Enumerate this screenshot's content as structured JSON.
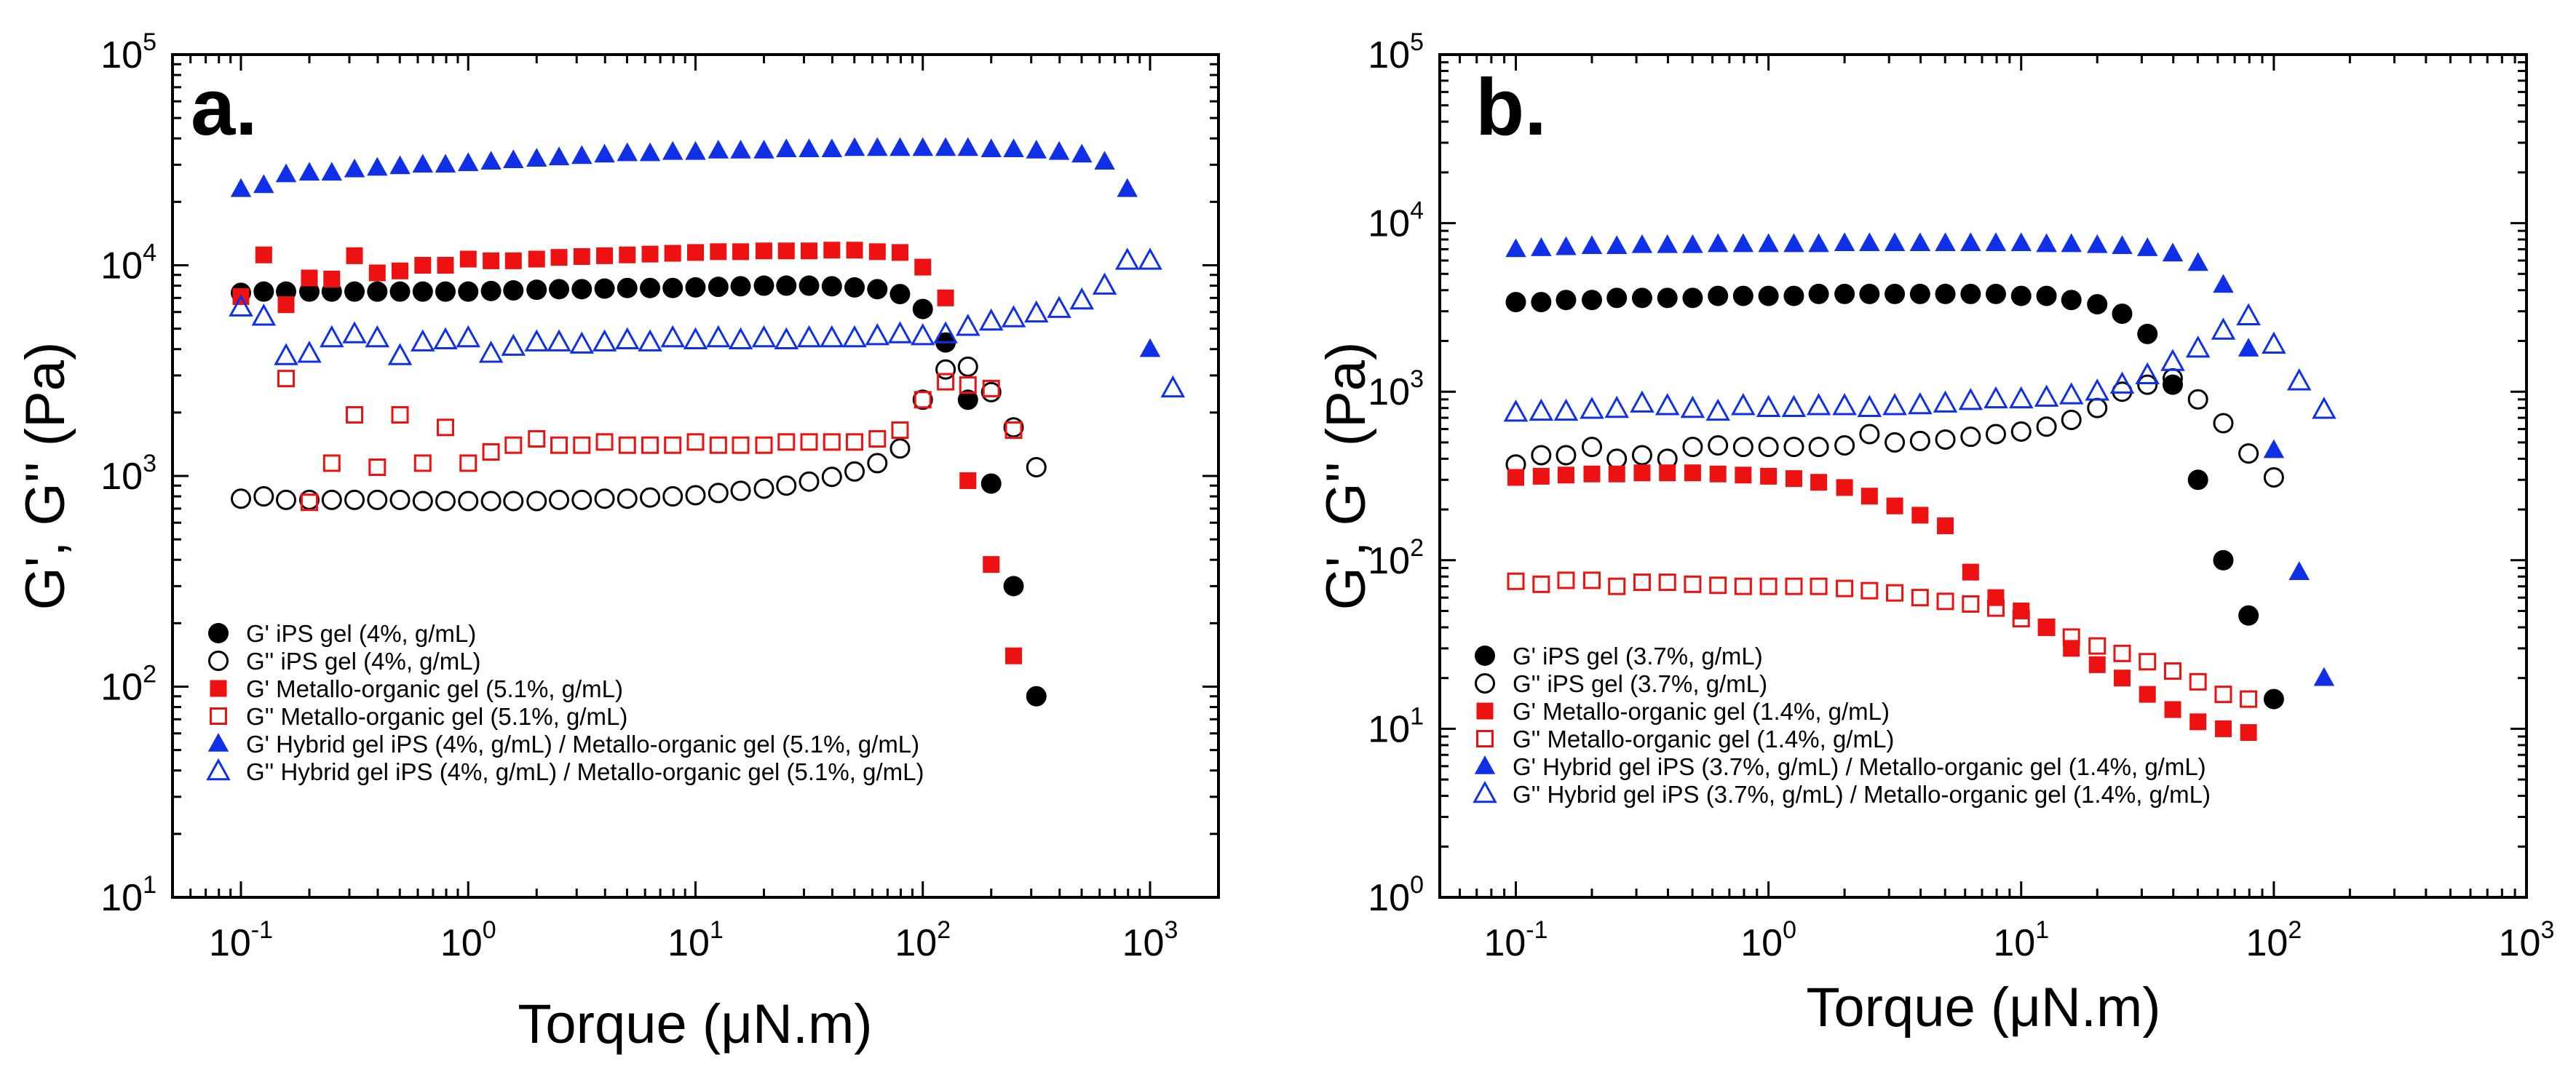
{
  "colors": {
    "black": "#000000",
    "red": "#ee1111",
    "blue": "#1030e8"
  },
  "chart_data": [
    {
      "type": "scatter",
      "panel_label": "a.",
      "xlabel": "Torque (μN.m)",
      "ylabel": "G', G'' (Pa)",
      "xscale": "log",
      "yscale": "log",
      "xlim": [
        0.05,
        2000
      ],
      "ylim": [
        10,
        100000
      ],
      "xticks": [
        {
          "b": "10",
          "e": "-1"
        },
        {
          "b": "10",
          "e": "0"
        },
        {
          "b": "10",
          "e": "1"
        },
        {
          "b": "10",
          "e": "2"
        },
        {
          "b": "10",
          "e": "3"
        }
      ],
      "yticks": [
        {
          "b": "10",
          "e": "1"
        },
        {
          "b": "10",
          "e": "2"
        },
        {
          "b": "10",
          "e": "3"
        },
        {
          "b": "10",
          "e": "4"
        },
        {
          "b": "10",
          "e": "5"
        }
      ],
      "legend_position": "bottom-left",
      "series": [
        {
          "name": "G' iPS gel (4%, g/mL)",
          "marker": "circle",
          "filled": true,
          "color": "black",
          "x": [
            0.1,
            0.126,
            0.158,
            0.2,
            0.251,
            0.316,
            0.398,
            0.501,
            0.631,
            0.794,
            1.0,
            1.26,
            1.58,
            2.0,
            2.51,
            3.16,
            3.98,
            5.01,
            6.31,
            7.94,
            10.0,
            12.6,
            15.8,
            20.0,
            25.1,
            31.6,
            39.8,
            50.1,
            63.1,
            79.4,
            100,
            126,
            158,
            200,
            251,
            316
          ],
          "y": [
            7400,
            7500,
            7500,
            7500,
            7500,
            7500,
            7500,
            7500,
            7500,
            7500,
            7500,
            7550,
            7600,
            7650,
            7700,
            7700,
            7750,
            7800,
            7800,
            7800,
            7850,
            7900,
            7950,
            8000,
            8000,
            8000,
            7950,
            7850,
            7700,
            7300,
            6200,
            4300,
            2300,
            920,
            300,
            90
          ]
        },
        {
          "name": "G'' iPS gel (4%, g/mL)",
          "marker": "circle",
          "filled": false,
          "color": "black",
          "x": [
            0.1,
            0.126,
            0.158,
            0.2,
            0.251,
            0.316,
            0.398,
            0.501,
            0.631,
            0.794,
            1.0,
            1.26,
            1.58,
            2.0,
            2.51,
            3.16,
            3.98,
            5.01,
            6.31,
            7.94,
            10.0,
            12.6,
            15.8,
            20.0,
            25.1,
            31.6,
            39.8,
            50.1,
            63.1,
            79.4,
            100,
            126,
            158,
            200,
            251,
            316
          ],
          "y": [
            780,
            800,
            770,
            770,
            770,
            770,
            770,
            770,
            760,
            760,
            760,
            760,
            760,
            760,
            770,
            770,
            780,
            780,
            790,
            800,
            810,
            830,
            850,
            870,
            900,
            940,
            990,
            1050,
            1150,
            1350,
            2300,
            3200,
            3300,
            2500,
            1700,
            1100
          ]
        },
        {
          "name": "G' Metallo-organic gel (5.1%, g/mL)",
          "marker": "square",
          "filled": true,
          "color": "red",
          "x": [
            0.1,
            0.126,
            0.158,
            0.2,
            0.251,
            0.316,
            0.398,
            0.501,
            0.631,
            0.794,
            1.0,
            1.26,
            1.58,
            2.0,
            2.51,
            3.16,
            3.98,
            5.01,
            6.31,
            7.94,
            10.0,
            12.6,
            15.8,
            20.0,
            25.1,
            31.6,
            39.8,
            50.1,
            63.1,
            79.4,
            100,
            126,
            158,
            200,
            251
          ],
          "y": [
            7100,
            11200,
            6500,
            8700,
            8600,
            11100,
            9200,
            9400,
            10000,
            10000,
            10700,
            10500,
            10500,
            10700,
            10900,
            11000,
            11100,
            11200,
            11300,
            11400,
            11500,
            11600,
            11600,
            11700,
            11700,
            11700,
            11800,
            11800,
            11600,
            11500,
            9800,
            7000,
            950,
            380,
            140
          ]
        },
        {
          "name": "G'' Metallo-organic gel (5.1%, g/mL)",
          "marker": "square",
          "filled": false,
          "color": "red",
          "x": [
            0.158,
            0.2,
            0.251,
            0.316,
            0.398,
            0.501,
            0.631,
            0.794,
            1.0,
            1.26,
            1.58,
            2.0,
            2.51,
            3.16,
            3.98,
            5.01,
            6.31,
            7.94,
            10.0,
            12.6,
            15.8,
            20.0,
            25.1,
            31.6,
            39.8,
            50.1,
            63.1,
            79.4,
            100,
            126,
            158,
            200,
            251
          ],
          "y": [
            2900,
            750,
            1150,
            1950,
            1100,
            1950,
            1150,
            1700,
            1150,
            1300,
            1400,
            1500,
            1400,
            1400,
            1450,
            1400,
            1400,
            1400,
            1450,
            1400,
            1400,
            1400,
            1450,
            1450,
            1450,
            1450,
            1500,
            1650,
            2300,
            2800,
            2700,
            2600,
            1650
          ]
        },
        {
          "name": "G' Hybrid gel iPS (4%, g/mL) / Metallo-organic gel (5.1%, g/mL)",
          "marker": "triangle",
          "filled": true,
          "color": "blue",
          "x": [
            0.1,
            0.126,
            0.158,
            0.2,
            0.251,
            0.316,
            0.398,
            0.501,
            0.631,
            0.794,
            1.0,
            1.26,
            1.58,
            2.0,
            2.51,
            3.16,
            3.98,
            5.01,
            6.31,
            7.94,
            10.0,
            12.6,
            15.8,
            20.0,
            25.1,
            31.6,
            39.8,
            50.1,
            63.1,
            79.4,
            100,
            126,
            158,
            200,
            251,
            316,
            398,
            501,
            631,
            794,
            1000
          ],
          "y": [
            23000,
            24000,
            27000,
            27500,
            27500,
            28500,
            29000,
            29500,
            30000,
            30000,
            30500,
            31000,
            31500,
            32000,
            32500,
            33000,
            33500,
            34000,
            34000,
            34500,
            34500,
            35000,
            35000,
            35000,
            35500,
            35500,
            35500,
            36000,
            36000,
            36000,
            36000,
            36000,
            36000,
            35500,
            35500,
            35000,
            34500,
            33500,
            31000,
            23000,
            4000
          ]
        },
        {
          "name": "G'' Hybrid gel iPS (4%, g/mL) / Metallo-organic gel (5.1%, g/mL)",
          "marker": "triangle",
          "filled": false,
          "color": "blue",
          "x": [
            0.1,
            0.126,
            0.158,
            0.2,
            0.251,
            0.316,
            0.398,
            0.501,
            0.631,
            0.794,
            1.0,
            1.26,
            1.58,
            2.0,
            2.51,
            3.16,
            3.98,
            5.01,
            6.31,
            7.94,
            10.0,
            12.6,
            15.8,
            20.0,
            25.1,
            31.6,
            39.8,
            50.1,
            63.1,
            79.4,
            100,
            126,
            158,
            200,
            251,
            316,
            398,
            501,
            631,
            794,
            1000,
            1260
          ],
          "y": [
            6300,
            5700,
            3700,
            3800,
            4500,
            4700,
            4500,
            3700,
            4300,
            4400,
            4500,
            3800,
            4100,
            4300,
            4300,
            4200,
            4300,
            4400,
            4300,
            4500,
            4400,
            4500,
            4400,
            4500,
            4400,
            4500,
            4500,
            4500,
            4600,
            4700,
            4600,
            4700,
            5100,
            5400,
            5600,
            5900,
            6200,
            6800,
            8000,
            10500,
            10500,
            2600
          ]
        }
      ]
    },
    {
      "type": "scatter",
      "panel_label": "b.",
      "xlabel": "Torque (μN.m)",
      "ylabel": "G', G'' (Pa)",
      "xscale": "log",
      "yscale": "log",
      "xlim": [
        0.05,
        1000
      ],
      "ylim": [
        1,
        100000
      ],
      "xticks": [
        {
          "b": "10",
          "e": "-1"
        },
        {
          "b": "10",
          "e": "0"
        },
        {
          "b": "10",
          "e": "1"
        },
        {
          "b": "10",
          "e": "2"
        },
        {
          "b": "10",
          "e": "3"
        }
      ],
      "yticks": [
        {
          "b": "10",
          "e": "0"
        },
        {
          "b": "10",
          "e": "1"
        },
        {
          "b": "10",
          "e": "2"
        },
        {
          "b": "10",
          "e": "3"
        },
        {
          "b": "10",
          "e": "4"
        },
        {
          "b": "10",
          "e": "5"
        }
      ],
      "legend_position": "bottom-left",
      "series": [
        {
          "name": "G' iPS gel (3.7%, g/mL)",
          "marker": "circle",
          "filled": true,
          "color": "black",
          "x": [
            0.1,
            0.126,
            0.158,
            0.2,
            0.251,
            0.316,
            0.398,
            0.501,
            0.631,
            0.794,
            1.0,
            1.26,
            1.58,
            2.0,
            2.51,
            3.16,
            3.98,
            5.01,
            6.31,
            7.94,
            10.0,
            12.6,
            15.8,
            20.0,
            25.1,
            31.6,
            39.8,
            50.1,
            63.1,
            79.4,
            100
          ],
          "y": [
            3400,
            3400,
            3500,
            3500,
            3600,
            3600,
            3600,
            3600,
            3700,
            3700,
            3700,
            3700,
            3800,
            3800,
            3800,
            3800,
            3800,
            3800,
            3800,
            3800,
            3700,
            3700,
            3500,
            3300,
            2900,
            2200,
            1100,
            300,
            100,
            47,
            15
          ]
        },
        {
          "name": "G'' iPS gel (3.7%, g/mL)",
          "marker": "circle",
          "filled": false,
          "color": "black",
          "x": [
            0.1,
            0.126,
            0.158,
            0.2,
            0.251,
            0.316,
            0.398,
            0.501,
            0.631,
            0.794,
            1.0,
            1.26,
            1.58,
            2.0,
            2.51,
            3.16,
            3.98,
            5.01,
            6.31,
            7.94,
            10.0,
            12.6,
            15.8,
            20.0,
            25.1,
            31.6,
            39.8,
            50.1,
            63.1,
            79.4,
            100
          ],
          "y": [
            370,
            420,
            420,
            470,
            400,
            420,
            400,
            470,
            480,
            470,
            470,
            470,
            470,
            480,
            560,
            500,
            510,
            520,
            540,
            560,
            580,
            620,
            680,
            800,
            1000,
            1100,
            1200,
            900,
            650,
            430,
            310
          ]
        },
        {
          "name": "G' Metallo-organic gel (1.4%, g/mL)",
          "marker": "square",
          "filled": true,
          "color": "red",
          "x": [
            0.1,
            0.126,
            0.158,
            0.2,
            0.251,
            0.316,
            0.398,
            0.501,
            0.631,
            0.794,
            1.0,
            1.26,
            1.58,
            2.0,
            2.51,
            3.16,
            3.98,
            5.01,
            6.31,
            7.94,
            10.0,
            12.6,
            15.8,
            20.0,
            25.1,
            31.6,
            39.8,
            50.1,
            63.1,
            79.4
          ],
          "y": [
            310,
            315,
            320,
            325,
            325,
            330,
            330,
            330,
            325,
            320,
            315,
            305,
            290,
            270,
            240,
            210,
            185,
            160,
            85,
            60,
            50,
            40,
            30,
            24,
            20,
            16,
            13,
            11,
            10,
            9.5
          ]
        },
        {
          "name": "G'' Metallo-organic gel (1.4%, g/mL)",
          "marker": "square",
          "filled": false,
          "color": "red",
          "x": [
            0.1,
            0.126,
            0.158,
            0.2,
            0.251,
            0.316,
            0.398,
            0.501,
            0.631,
            0.794,
            1.0,
            1.26,
            1.58,
            2.0,
            2.51,
            3.16,
            3.98,
            5.01,
            6.31,
            7.94,
            10.0,
            12.6,
            15.8,
            20.0,
            25.1,
            31.6,
            39.8,
            50.1,
            63.1,
            79.4
          ],
          "y": [
            75,
            72,
            76,
            76,
            70,
            74,
            74,
            72,
            71,
            70,
            70,
            70,
            70,
            68,
            66,
            64,
            60,
            57,
            55,
            52,
            45,
            40,
            35,
            31,
            28,
            25,
            22,
            19,
            16,
            15
          ]
        },
        {
          "name": "G' Hybrid gel iPS (3.7%, g/mL) / Metallo-organic gel (1.4%, g/mL)",
          "marker": "triangle",
          "filled": true,
          "color": "blue",
          "x": [
            0.1,
            0.126,
            0.158,
            0.2,
            0.251,
            0.316,
            0.398,
            0.501,
            0.631,
            0.794,
            1.0,
            1.26,
            1.58,
            2.0,
            2.51,
            3.16,
            3.98,
            5.01,
            6.31,
            7.94,
            10.0,
            12.6,
            15.8,
            20.0,
            25.1,
            31.6,
            39.8,
            50.1,
            63.1,
            79.4,
            100,
            126,
            158
          ],
          "y": [
            7000,
            7100,
            7200,
            7300,
            7300,
            7400,
            7400,
            7400,
            7500,
            7500,
            7500,
            7500,
            7500,
            7600,
            7600,
            7600,
            7600,
            7600,
            7600,
            7600,
            7600,
            7500,
            7500,
            7400,
            7300,
            7100,
            6600,
            5800,
            4300,
            1800,
            450,
            85,
            20
          ]
        },
        {
          "name": "G'' Hybrid gel iPS (3.7%, g/mL) / Metallo-organic gel (1.4%, g/mL)",
          "marker": "triangle",
          "filled": false,
          "color": "blue",
          "x": [
            0.1,
            0.126,
            0.158,
            0.2,
            0.251,
            0.316,
            0.398,
            0.501,
            0.631,
            0.794,
            1.0,
            1.26,
            1.58,
            2.0,
            2.51,
            3.16,
            3.98,
            5.01,
            6.31,
            7.94,
            10.0,
            12.6,
            15.8,
            20.0,
            25.1,
            31.6,
            39.8,
            50.1,
            63.1,
            79.4,
            100,
            126,
            158
          ],
          "y": [
            750,
            760,
            760,
            780,
            790,
            850,
            820,
            790,
            760,
            820,
            800,
            800,
            820,
            820,
            800,
            820,
            830,
            850,
            880,
            900,
            900,
            920,
            950,
            1000,
            1100,
            1250,
            1500,
            1800,
            2300,
            2800,
            1900,
            1150,
            780
          ]
        }
      ]
    }
  ]
}
